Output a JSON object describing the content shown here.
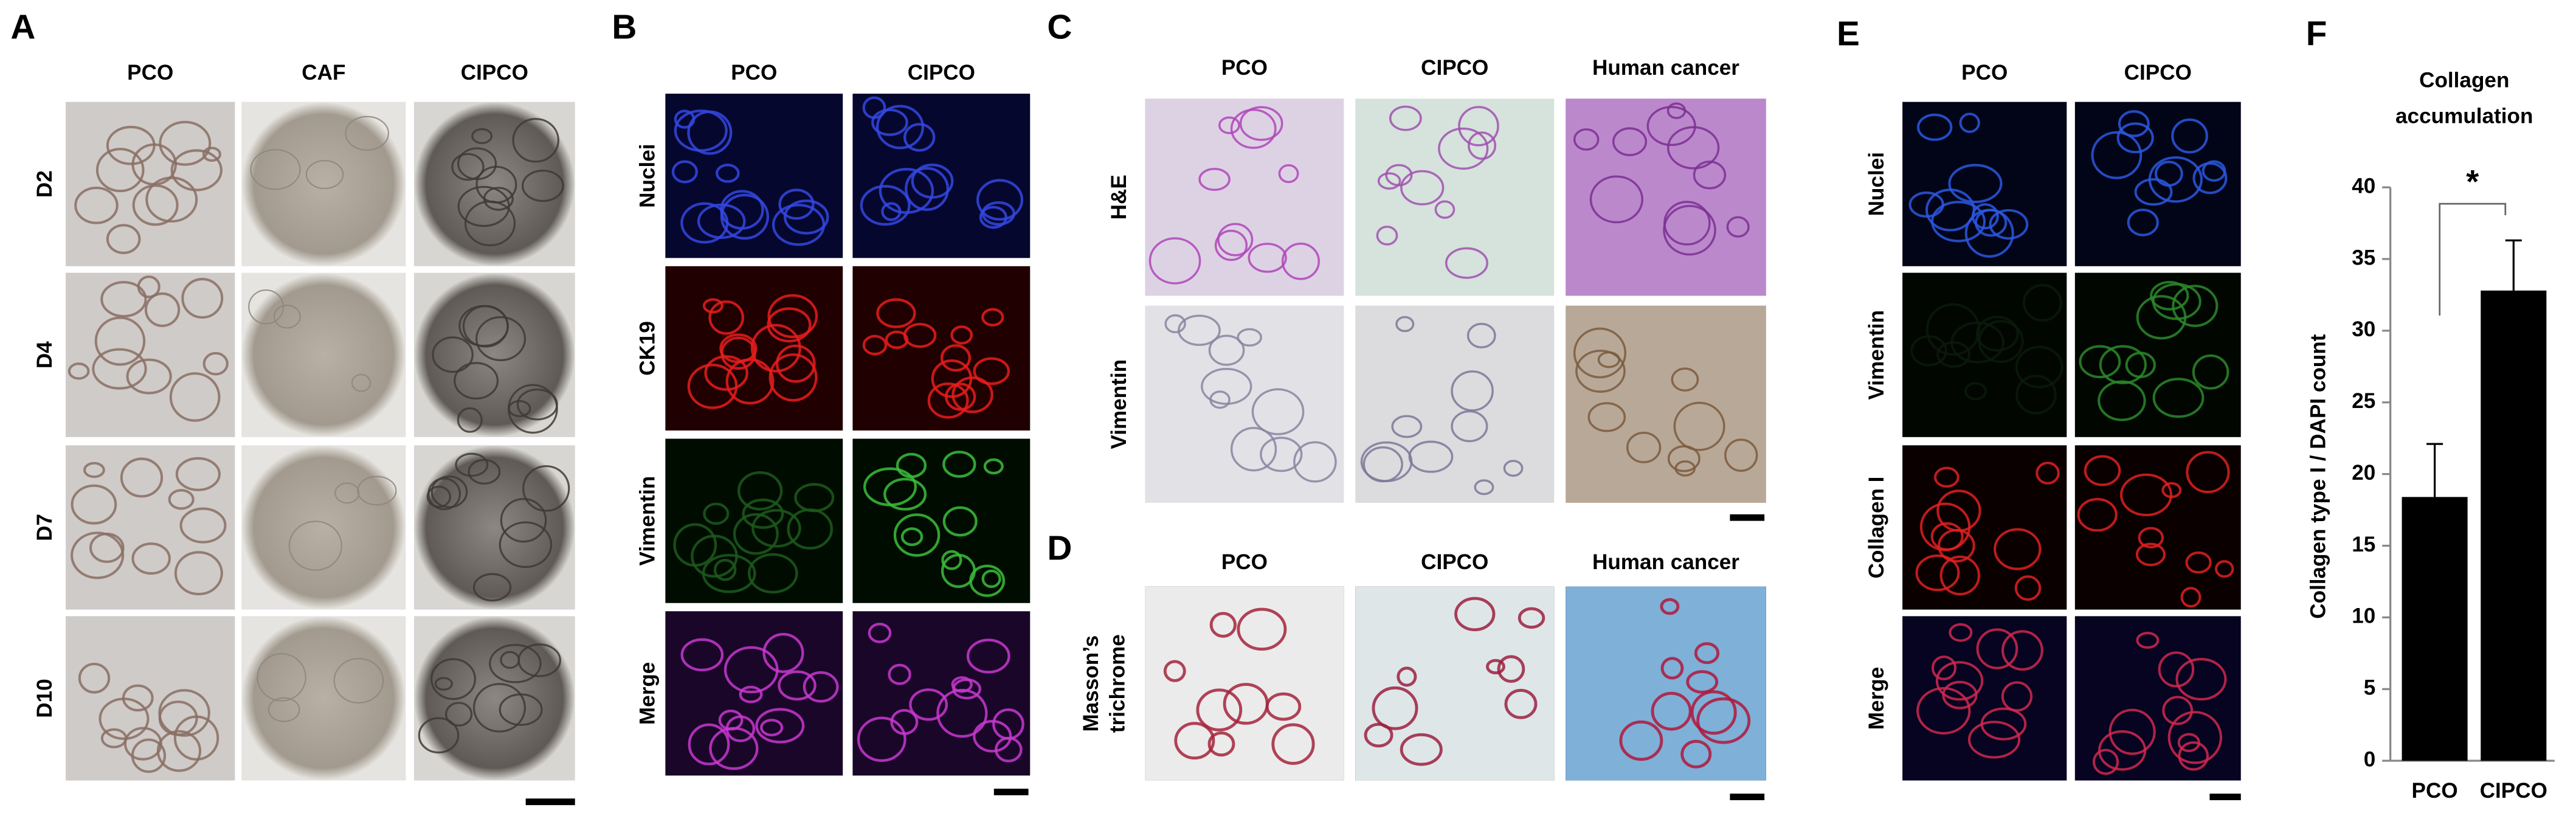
{
  "panels": {
    "A": {
      "label": "A",
      "columns": [
        "PCO",
        "CAF",
        "CIPCO"
      ],
      "rows": [
        "D2",
        "D4",
        "D7",
        "D10"
      ]
    },
    "B": {
      "label": "B",
      "columns": [
        "PCO",
        "CIPCO"
      ],
      "rows": [
        "Nuclei",
        "CK19",
        "Vimentin",
        "Merge"
      ]
    },
    "C": {
      "label": "C",
      "columns": [
        "PCO",
        "CIPCO",
        "Human cancer"
      ],
      "rows": [
        "H&E",
        "Vimentin"
      ]
    },
    "D": {
      "label": "D",
      "columns": [
        "PCO",
        "CIPCO",
        "Human cancer"
      ],
      "row_label_lines": [
        "Masson’s",
        "trichrome"
      ]
    },
    "E": {
      "label": "E",
      "columns": [
        "PCO",
        "CIPCO"
      ],
      "rows": [
        "Nuclei",
        "Vimentin",
        "Collagen I",
        "Merge"
      ]
    },
    "F": {
      "label": "F"
    }
  },
  "chart_data": {
    "type": "bar",
    "title": "Collagen accumulation",
    "y_label": "Collagen type I / DAPI count",
    "categories": [
      "PCO",
      "CIPCO"
    ],
    "values": [
      18.4,
      32.8
    ],
    "errors": [
      3.7,
      3.5
    ],
    "color": "#000000",
    "ylim": [
      0,
      40
    ],
    "yticks": [
      0,
      5,
      10,
      15,
      20,
      25,
      30,
      35,
      40
    ],
    "annotation": "*"
  }
}
